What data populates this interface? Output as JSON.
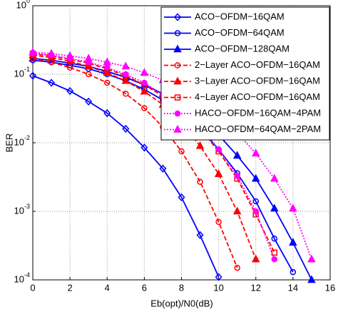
{
  "chart_data": {
    "type": "line",
    "x_label": "Eb(opt)/N0(dB)",
    "y_label": "BER",
    "xlim": [
      0,
      16
    ],
    "xticks": [
      0,
      2,
      4,
      6,
      8,
      10,
      12,
      14,
      16
    ],
    "ylim": [
      0.0001,
      1
    ],
    "yticks": [
      {
        "value": 0.0001,
        "label": "10^-4"
      },
      {
        "value": 0.001,
        "label": "10^-3"
      },
      {
        "value": 0.01,
        "label": "10^-2"
      },
      {
        "value": 0.1,
        "label": "10^-1"
      },
      {
        "value": 1,
        "label": "10^0"
      }
    ],
    "log_y": true,
    "grid": true,
    "legend": "upper right",
    "series": [
      {
        "name": "ACO−OFDM−16QAM",
        "color": "#0000ff",
        "marker": "diamond",
        "dash": "solid",
        "x": [
          0,
          1,
          2,
          3,
          4,
          5,
          6,
          7,
          8,
          9,
          10
        ],
        "values": [
          0.095,
          0.075,
          0.057,
          0.04,
          0.027,
          0.016,
          0.0085,
          0.0042,
          0.0016,
          0.00045,
          0.00011
        ]
      },
      {
        "name": "ACO−OFDM−64QAM",
        "color": "#0000ff",
        "marker": "circle",
        "dash": "solid",
        "x": [
          0,
          1,
          2,
          3,
          4,
          5,
          6,
          7,
          8,
          9,
          10,
          11,
          12,
          13,
          14
        ],
        "values": [
          0.16,
          0.15,
          0.135,
          0.12,
          0.1,
          0.08,
          0.06,
          0.042,
          0.028,
          0.016,
          0.008,
          0.0036,
          0.0014,
          0.0004,
          0.00013
        ]
      },
      {
        "name": "ACO−OFDM−128QAM",
        "color": "#0000ff",
        "marker": "triangle",
        "dash": "solid",
        "x": [
          0,
          1,
          2,
          3,
          4,
          5,
          6,
          7,
          8,
          9,
          10,
          11,
          12,
          13,
          14,
          15
        ],
        "values": [
          0.17,
          0.16,
          0.145,
          0.13,
          0.11,
          0.09,
          0.07,
          0.052,
          0.036,
          0.023,
          0.013,
          0.0065,
          0.003,
          0.0011,
          0.00035,
          0.0001
        ]
      },
      {
        "name": "2−Layer ACO−OFDM−16QAM",
        "color": "#ff0000",
        "marker": "circle",
        "dash": "dashed",
        "x": [
          0,
          1,
          2,
          3,
          4,
          5,
          6,
          7,
          8,
          9,
          10,
          11
        ],
        "values": [
          0.17,
          0.15,
          0.125,
          0.1,
          0.075,
          0.052,
          0.032,
          0.017,
          0.0075,
          0.0027,
          0.0007,
          0.00015
        ]
      },
      {
        "name": "3−Layer ACO−OFDM−16QAM",
        "color": "#ff0000",
        "marker": "triangle",
        "dash": "dashed",
        "x": [
          0,
          1,
          2,
          3,
          4,
          5,
          6,
          7,
          8,
          9,
          10,
          11,
          12
        ],
        "values": [
          0.19,
          0.175,
          0.155,
          0.13,
          0.105,
          0.08,
          0.056,
          0.036,
          0.02,
          0.009,
          0.0035,
          0.001,
          0.0002
        ]
      },
      {
        "name": "4−Layer ACO−OFDM−16QAM",
        "color": "#ff0000",
        "marker": "square",
        "dash": "dashed",
        "x": [
          0,
          1,
          2,
          3,
          4,
          5,
          6,
          7,
          8,
          9,
          10,
          11,
          12,
          13
        ],
        "values": [
          0.2,
          0.185,
          0.165,
          0.145,
          0.12,
          0.095,
          0.07,
          0.048,
          0.03,
          0.016,
          0.0075,
          0.003,
          0.0009,
          0.00025
        ]
      },
      {
        "name": "HACO−OFDM−16QAM−4PAM",
        "color": "#ff00ff",
        "marker": "dot",
        "dash": "dotted",
        "x": [
          0,
          1,
          2,
          3,
          4,
          5,
          6,
          7,
          8,
          9,
          10,
          11,
          12,
          13
        ],
        "values": [
          0.2,
          0.19,
          0.17,
          0.15,
          0.125,
          0.1,
          0.075,
          0.05,
          0.032,
          0.018,
          0.008,
          0.0033,
          0.001,
          0.0002
        ]
      },
      {
        "name": "HACO−OFDM−64QAM−2PAM",
        "color": "#ff00ff",
        "marker": "triangle",
        "dash": "dotted",
        "x": [
          0,
          1,
          2,
          3,
          4,
          5,
          6,
          7,
          8,
          9,
          10,
          11,
          12,
          13,
          14,
          15
        ],
        "values": [
          0.21,
          0.2,
          0.185,
          0.17,
          0.15,
          0.13,
          0.105,
          0.082,
          0.06,
          0.04,
          0.025,
          0.014,
          0.007,
          0.003,
          0.0011,
          0.0002
        ]
      }
    ]
  }
}
